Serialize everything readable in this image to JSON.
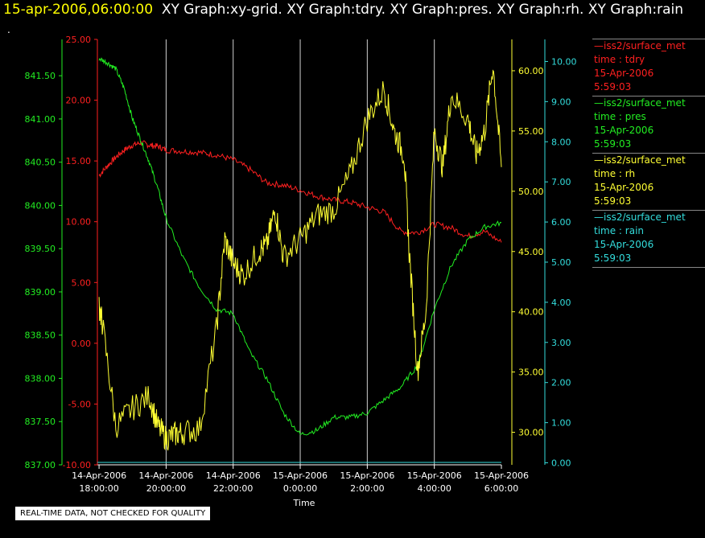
{
  "header": {
    "timestamp": "15-apr-2006,06:00:00",
    "graphs": "XY Graph:xy-grid.  XY Graph:tdry.  XY Graph:pres.  XY Graph:rh.  XY Graph:rain",
    "dot": "."
  },
  "note": "REAL-TIME DATA, NOT CHECKED FOR QUALITY",
  "legend": [
    {
      "name": "—iss2/surface_met",
      "var": "time : tdry",
      "date": "15-Apr-2006",
      "time": "5:59:03",
      "color": "#ff2020"
    },
    {
      "name": "—iss2/surface_met",
      "var": "time : pres",
      "date": "15-Apr-2006",
      "time": "5:59:03",
      "color": "#22ee22"
    },
    {
      "name": "—iss2/surface_met",
      "var": "time : rh",
      "date": "15-Apr-2006",
      "time": "5:59:03",
      "color": "#ffff33"
    },
    {
      "name": "—iss2/surface_met",
      "var": "time : rain",
      "date": "15-Apr-2006",
      "time": "5:59:03",
      "color": "#33dddd"
    }
  ],
  "chart_data": {
    "type": "line",
    "xlabel": "Time",
    "x_ticks": [
      [
        "14-Apr-2006",
        "18:00:00"
      ],
      [
        "14-Apr-2006",
        "20:00:00"
      ],
      [
        "14-Apr-2006",
        "22:00:00"
      ],
      [
        "15-Apr-2006",
        "0:00:00"
      ],
      [
        "15-Apr-2006",
        "2:00:00"
      ],
      [
        "15-Apr-2006",
        "4:00:00"
      ],
      [
        "15-Apr-2006",
        "6:00:00"
      ]
    ],
    "xlim_hours": [
      -0.05,
      12.0
    ],
    "grid": true,
    "axes": [
      {
        "id": "pres",
        "color": "#22ee22",
        "ylim": [
          837.0,
          841.92
        ],
        "ticks": [
          "837.00",
          "837.50",
          "838.00",
          "838.50",
          "839.00",
          "839.50",
          "840.00",
          "840.50",
          "841.00",
          "841.50"
        ]
      },
      {
        "id": "tdry",
        "color": "#ff2020",
        "ylim": [
          -10.0,
          25.0
        ],
        "ticks": [
          "-10.00",
          "-5.00",
          "0.00",
          "5.00",
          "10.00",
          "15.00",
          "20.00",
          "25.00"
        ]
      },
      {
        "id": "rh",
        "color": "#ffff33",
        "ylim": [
          27.3,
          62.6
        ],
        "ticks": [
          "30.00",
          "35.00",
          "40.00",
          "45.00",
          "50.00",
          "55.00",
          "60.00"
        ]
      },
      {
        "id": "rain",
        "color": "#33dddd",
        "ylim": [
          -0.05,
          10.55
        ],
        "ticks": [
          "0.00",
          "1.00",
          "2.00",
          "3.00",
          "4.00",
          "5.00",
          "6.00",
          "7.00",
          "8.00",
          "9.00",
          "10.00"
        ]
      }
    ],
    "series": [
      {
        "axis": "tdry",
        "color": "#ff2020",
        "x": [
          0,
          0.25,
          0.5,
          0.75,
          1,
          1.25,
          1.5,
          1.75,
          2,
          2.5,
          3,
          3.5,
          4,
          4.5,
          5,
          5.5,
          6,
          6.5,
          7,
          7.5,
          8,
          8.5,
          9,
          9.5,
          10,
          10.5,
          11,
          11.5,
          12
        ],
        "y": [
          13.8,
          14.6,
          15.3,
          15.9,
          16.3,
          16.5,
          16.3,
          16.2,
          15.9,
          15.8,
          15.7,
          15.5,
          15.1,
          14.3,
          13.2,
          13.0,
          12.6,
          12.1,
          11.8,
          11.6,
          11.2,
          10.8,
          9.2,
          9.1,
          9.8,
          9.5,
          8.8,
          9.2,
          8.3
        ]
      },
      {
        "axis": "pres",
        "color": "#22ee22",
        "x": [
          0,
          0.25,
          0.5,
          0.75,
          1,
          1.25,
          1.5,
          1.75,
          2,
          2.5,
          3,
          3.5,
          4,
          4.5,
          5,
          5.5,
          6,
          6.5,
          7,
          7.5,
          8,
          8.5,
          9,
          9.5,
          10,
          10.5,
          11,
          11.5,
          12
        ],
        "y": [
          841.7,
          841.65,
          841.58,
          841.35,
          841.0,
          840.75,
          840.5,
          840.2,
          839.85,
          839.4,
          839.05,
          838.8,
          838.75,
          838.3,
          838.0,
          837.6,
          837.35,
          837.4,
          837.55,
          837.55,
          837.6,
          837.75,
          837.9,
          838.15,
          838.8,
          839.3,
          839.6,
          839.75,
          839.8
        ]
      },
      {
        "axis": "rh",
        "color": "#ffff33",
        "x": [
          0,
          0.1,
          0.5,
          1,
          1.5,
          1.75,
          2,
          2.25,
          2.5,
          3,
          3.5,
          3.75,
          4,
          4.3,
          4.75,
          5,
          5.25,
          5.5,
          6,
          6.5,
          7,
          7.5,
          8,
          8.5,
          8.8,
          9.1,
          9.25,
          9.5,
          9.75,
          10,
          10.25,
          10.5,
          11,
          11.25,
          11.5,
          11.75,
          12
        ],
        "y": [
          40.5,
          39,
          30.5,
          32,
          33,
          30.5,
          29.5,
          29.8,
          30,
          30.3,
          38.5,
          46,
          44,
          43,
          45,
          45.5,
          48.5,
          44.5,
          46,
          48,
          48.5,
          51.5,
          56,
          58.5,
          55,
          53,
          45,
          35,
          40,
          55,
          52,
          58,
          56,
          53,
          55,
          60.5,
          52
        ]
      },
      {
        "axis": "rain",
        "color": "#33dddd",
        "x": [
          0,
          12
        ],
        "y": [
          0.01,
          0.01
        ]
      }
    ]
  }
}
